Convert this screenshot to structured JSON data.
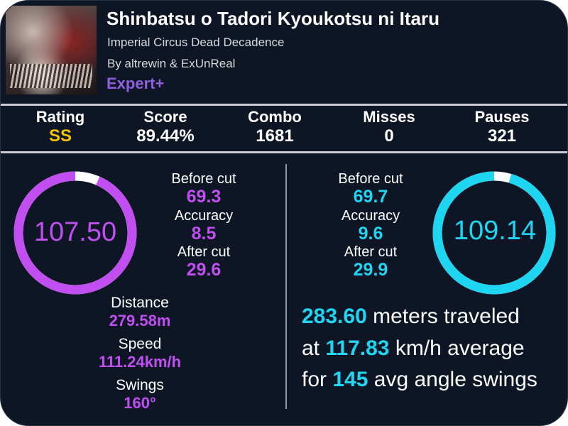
{
  "song": {
    "title": "Shinbatsu o Tadori Kyoukotsu ni Itaru",
    "artist": "Imperial Circus Dead Decadence",
    "mapper": "By altrewin & ExUnReal",
    "difficulty": "Expert+"
  },
  "stats": [
    {
      "label": "Rating",
      "value": "SS"
    },
    {
      "label": "Score",
      "value": "89.44%"
    },
    {
      "label": "Combo",
      "value": "1681"
    },
    {
      "label": "Misses",
      "value": "0"
    },
    {
      "label": "Pauses",
      "value": "321"
    }
  ],
  "left_hand": {
    "average": "107.50",
    "fill_fraction": 0.935,
    "before_cut_label": "Before cut",
    "before_cut": "69.3",
    "accuracy_label": "Accuracy",
    "accuracy": "8.5",
    "after_cut_label": "After cut",
    "after_cut": "29.6",
    "distance_label": "Distance",
    "distance": "279.58m",
    "speed_label": "Speed",
    "speed": "111.24km/h",
    "swings_label": "Swings",
    "swings": "160°"
  },
  "right_hand": {
    "average": "109.14",
    "fill_fraction": 0.955,
    "before_cut_label": "Before cut",
    "before_cut": "69.7",
    "accuracy_label": "Accuracy",
    "accuracy": "9.6",
    "after_cut_label": "After cut",
    "after_cut": "29.9",
    "distance": "283.60",
    "distance_text": "meters traveled",
    "at_text": "at",
    "speed": "117.83",
    "speed_text": "km/h average",
    "for_text": "for",
    "swings": "145",
    "swings_text": "avg angle swings"
  },
  "colors": {
    "left": "#c04ef0",
    "right": "#1fd6f2",
    "rating": "#f5c400",
    "difficulty": "#8f5fe0",
    "background": "#0e1626"
  }
}
